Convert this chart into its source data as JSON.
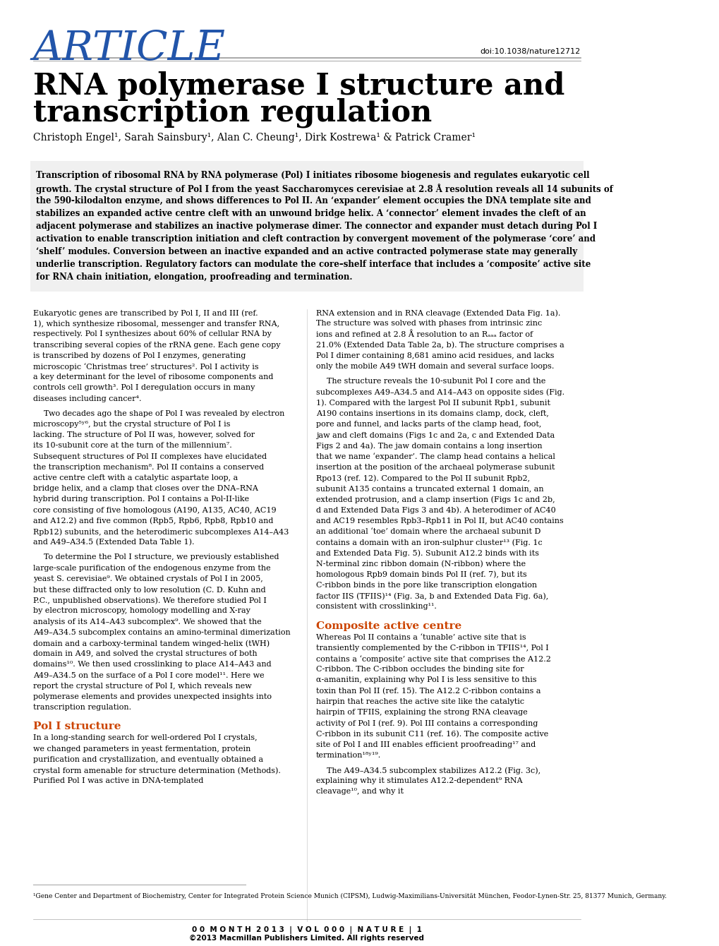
{
  "article_label": "ARTICLE",
  "doi": "doi:10.1038/nature12712",
  "title_line1": "RNA polymerase I structure and",
  "title_line2": "transcription regulation",
  "authors": "Christoph Engel¹, Sarah Sainsbury¹, Alan C. Cheung¹, Dirk Kostrewa¹ & Patrick Cramer¹",
  "abstract": "Transcription of ribosomal RNA by RNA polymerase (Pol) I initiates ribosome biogenesis and regulates eukaryotic cell growth. The crystal structure of Pol I from the yeast Saccharomyces cerevisiae at 2.8 Å resolution reveals all 14 subunits of the 590-kilodalton enzyme, and shows differences to Pol II. An ‘expander’ element occupies the DNA template site and stabilizes an expanded active centre cleft with an unwound bridge helix. A ‘connector’ element invades the cleft of an adjacent polymerase and stabilizes an inactive polymerase dimer. The connector and expander must detach during Pol I activation to enable transcription initiation and cleft contraction by convergent movement of the polymerase ‘core’ and ‘shelf’ modules. Conversion between an inactive expanded and an active contracted polymerase state may generally underlie transcription. Regulatory factors can modulate the core–shelf interface that includes a ‘composite’ active site for RNA chain initiation, elongation, proofreading and termination.",
  "col1_intro": "Eukaryotic genes are transcribed by Pol I, II and III (ref. 1), which synthesize ribosomal, messenger and transfer RNA, respectively. Pol I synthesizes about 60% of cellular RNA by transcribing several copies of the rRNA gene. Each gene copy is transcribed by dozens of Pol I enzymes, generating microscopic ‘Christmas tree’ structures². Pol I activity is a key determinant for the level of ribosome components and controls cell growth³. Pol I deregulation occurs in many diseases including cancer⁴.\n\n    Two decades ago the shape of Pol I was revealed by electron microscopy⁵ʸ⁶, but the crystal structure of Pol I is lacking. The structure of Pol II was, however, solved for its 10-subunit core at the turn of the millennium⁷. Subsequent structures of Pol II complexes have elucidated the transcription mechanism⁸. Pol II contains a conserved active centre cleft with a catalytic aspartate loop, a bridge helix, and a clamp that closes over the DNA–RNA hybrid during transcription. Pol I contains a Pol-II-like core consisting of five homologous (A190, A135, AC40, AC19 and A12.2) and five common (Rpb5, Rpb6, Rpb8, Rpb10 and Rpb12) subunits, and the heterodimeric subcomplexes A14–A43 and A49–A34.5 (Extended Data Table 1).\n\n    To determine the Pol I structure, we previously established large-scale purification of the endogenous enzyme from the yeast S. cerevisiae⁹. We obtained crystals of Pol I in 2005, but these diffracted only to low resolution (C. D. Kuhn and P.C., unpublished observations). We therefore studied Pol I by electron microscopy, homology modelling and X-ray analysis of its A14–A43 subcomplex⁹. We showed that the A49–A34.5 subcomplex contains an amino-terminal dimerization domain and a carboxy-terminal tandem winged-helix (tWH) domain in A49, and solved the crystal structures of both domains¹⁰. We then used crosslinking to place A14–A43 and A49–A34.5 on the surface of a Pol I core model¹¹. Here we report the crystal structure of Pol I, which reveals new polymerase elements and provides unexpected insights into transcription regulation.",
  "section1_title": "Pol I structure",
  "col1_section1": "In a long-standing search for well-ordered Pol I crystals, we changed parameters in yeast fermentation, protein purification and crystallization, and eventually obtained a crystal form amenable for structure determination (Methods). Purified Pol I was active in DNA-templated",
  "col2_intro": "RNA extension and in RNA cleavage (Extended Data Fig. 1a). The structure was solved with phases from intrinsic zinc ions and refined at 2.8 Å resolution to an Rₐₐₐ factor of 21.0% (Extended Data Table 2a, b). The structure comprises a Pol I dimer containing 8,681 amino acid residues, and lacks only the mobile A49 tWH domain and several surface loops.\n\n    The structure reveals the 10-subunit Pol I core and the subcomplexes A49–A34.5 and A14–A43 on opposite sides (Fig. 1). Compared with the largest Pol II subunit Rpb1, subunit A190 contains insertions in its domains clamp, dock, cleft, pore and funnel, and lacks parts of the clamp head, foot, jaw and cleft domains (Figs 1c and 2a, c and Extended Data Figs 2 and 4a). The jaw domain contains a long insertion that we name ‘expander’. The clamp head contains a helical insertion at the position of the archaeal polymerase subunit Rpo13 (ref. 12). Compared to the Pol II subunit Rpb2, subunit A135 contains a truncated external 1 domain, an extended protrusion, and a clamp insertion (Figs 1c and 2b, d and Extended Data Figs 3 and 4b). A heterodimer of AC40 and AC19 resembles Rpb3–Rpb11 in Pol II, but AC40 contains an additional ‘toe’ domain where the archaeal subunit D contains a domain with an iron-sulphur cluster¹³ (Fig. 1c and Extended Data Fig. 5). Subunit A12.2 binds with its N-terminal zinc ribbon domain (N-ribbon) where the homologous Rpb9 domain binds Pol II (ref. 7), but its C-ribbon binds in the pore like transcription elongation factor IIS (TFIIS)¹⁴ (Fig. 3a, b and Extended Data Fig. 6a), consistent with crosslinking¹¹.",
  "section2_title": "Composite active centre",
  "col2_section2": "Whereas Pol II contains a ‘tunable’ active site that is transiently complemented by the C-ribbon in TFIIS¹⁴, Pol I contains a ‘composite’ active site that comprises the A12.2 C-ribbon. The C-ribbon occludes the binding site for α-amanitin, explaining why Pol I is less sensitive to this toxin than Pol II (ref. 15). The A12.2 C-ribbon contains a hairpin that reaches the active site like the catalytic hairpin of TFIIS, explaining the strong RNA cleavage activity of Pol I (ref. 9). Pol III contains a corresponding C-ribbon in its subunit C11 (ref. 16). The composite active site of Pol I and III enables efficient proofreading¹⁷ and termination¹⁸ʸ¹⁹.\n\n    The A49–A34.5 subcomplex stabilizes A12.2 (Fig. 3c), explaining why it stimulates A12.2-dependent⁹ RNA cleavage¹⁰, and why it",
  "footnote": "¹Gene Center and Department of Biochemistry, Center for Integrated Protein Science Munich (CIPSM), Ludwig-Maximilians-Universität München, Feodor-Lynen-Str. 25, 81377 Munich, Germany.",
  "footer": "0 0  M O N T H  2 0 1 3  |  V O L  0 0 0  |  N A T U R E  |  1",
  "copyright": "©2013 Macmillan Publishers Limited. All rights reserved",
  "article_color": "#2255AA",
  "background_color": "#FFFFFF",
  "abstract_bg": "#F0F0F0",
  "section_title_color": "#CC4400",
  "text_color": "#000000",
  "line_color": "#999999"
}
